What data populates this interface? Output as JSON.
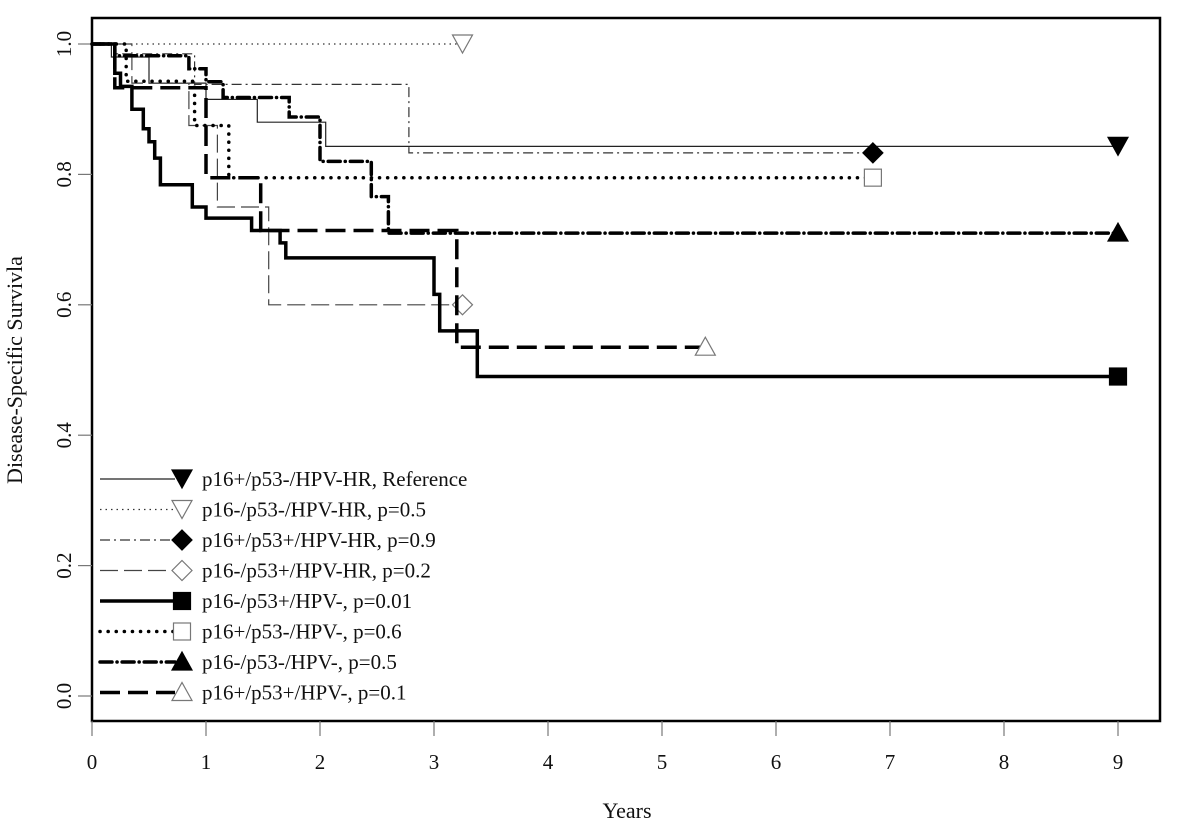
{
  "chart_data": {
    "type": "line",
    "subtype": "kaplan-meier step",
    "title": "",
    "xlabel": "Years",
    "ylabel": "Disease-Specific Survivla",
    "xlim": [
      0,
      9.3
    ],
    "ylim": [
      -0.08,
      1.05
    ],
    "xticks": [
      0,
      1,
      2,
      3,
      4,
      5,
      6,
      7,
      8,
      9
    ],
    "yticks": [
      0.0,
      0.2,
      0.4,
      0.6,
      0.8,
      1.0
    ],
    "ytick_labels": [
      "0.0",
      "0.2",
      "0.4",
      "0.6",
      "0.8",
      "1.0"
    ],
    "legend_position": "bottom-left",
    "grid": false,
    "series": [
      {
        "name": "p16+/p53-/HPV-HR, Reference",
        "line": "solid-thin",
        "marker": "triangle-down-filled",
        "points": [
          [
            0,
            1.0
          ],
          [
            0.17,
            1.0
          ],
          [
            0.17,
            0.98
          ],
          [
            0.5,
            0.98
          ],
          [
            0.5,
            0.94
          ],
          [
            1.0,
            0.94
          ],
          [
            1.0,
            0.915
          ],
          [
            1.45,
            0.915
          ],
          [
            1.45,
            0.88
          ],
          [
            2.05,
            0.88
          ],
          [
            2.05,
            0.843
          ],
          [
            9.0,
            0.843
          ]
        ]
      },
      {
        "name": "p16-/p53-/HPV-HR, p=0.5",
        "line": "dotted-thin",
        "marker": "triangle-down-open",
        "points": [
          [
            0,
            1.0
          ],
          [
            3.25,
            1.0
          ]
        ]
      },
      {
        "name": "p16+/p53+/HPV-HR, p=0.9",
        "line": "dashdot-thin",
        "marker": "diamond-filled",
        "points": [
          [
            0,
            1.0
          ],
          [
            0.2,
            1.0
          ],
          [
            0.2,
            0.985
          ],
          [
            0.9,
            0.985
          ],
          [
            0.9,
            0.938
          ],
          [
            2.78,
            0.938
          ],
          [
            2.78,
            0.833
          ],
          [
            6.85,
            0.833
          ]
        ]
      },
      {
        "name": "p16-/p53+/HPV-HR, p=0.2",
        "line": "longdash-thin",
        "marker": "diamond-open",
        "points": [
          [
            0,
            1.0
          ],
          [
            0.35,
            1.0
          ],
          [
            0.35,
            0.94
          ],
          [
            0.85,
            0.94
          ],
          [
            0.85,
            0.875
          ],
          [
            1.1,
            0.875
          ],
          [
            1.1,
            0.75
          ],
          [
            1.55,
            0.75
          ],
          [
            1.55,
            0.6
          ],
          [
            3.25,
            0.6
          ]
        ]
      },
      {
        "name": "p16-/p53+/HPV-, p=0.01",
        "line": "solid-thick",
        "marker": "square-filled",
        "points": [
          [
            0,
            1.0
          ],
          [
            0.2,
            1.0
          ],
          [
            0.2,
            0.955
          ],
          [
            0.25,
            0.955
          ],
          [
            0.25,
            0.935
          ],
          [
            0.35,
            0.935
          ],
          [
            0.35,
            0.9
          ],
          [
            0.45,
            0.9
          ],
          [
            0.45,
            0.87
          ],
          [
            0.5,
            0.87
          ],
          [
            0.5,
            0.85
          ],
          [
            0.55,
            0.85
          ],
          [
            0.55,
            0.825
          ],
          [
            0.6,
            0.825
          ],
          [
            0.6,
            0.784
          ],
          [
            0.88,
            0.784
          ],
          [
            0.88,
            0.75
          ],
          [
            1.0,
            0.75
          ],
          [
            1.0,
            0.733
          ],
          [
            1.4,
            0.733
          ],
          [
            1.4,
            0.714
          ],
          [
            1.65,
            0.714
          ],
          [
            1.65,
            0.695
          ],
          [
            1.7,
            0.695
          ],
          [
            1.7,
            0.672
          ],
          [
            3.0,
            0.672
          ],
          [
            3.0,
            0.616
          ],
          [
            3.05,
            0.616
          ],
          [
            3.05,
            0.56
          ],
          [
            3.38,
            0.56
          ],
          [
            3.38,
            0.49
          ],
          [
            9.0,
            0.49
          ]
        ]
      },
      {
        "name": "p16+/p53-/HPV-, p=0.6",
        "line": "dotted-thick",
        "marker": "square-open",
        "points": [
          [
            0,
            1.0
          ],
          [
            0.3,
            1.0
          ],
          [
            0.3,
            0.943
          ],
          [
            0.9,
            0.943
          ],
          [
            0.9,
            0.875
          ],
          [
            1.2,
            0.875
          ],
          [
            1.2,
            0.795
          ],
          [
            6.85,
            0.795
          ]
        ]
      },
      {
        "name": "p16-/p53-/HPV-, p=0.5",
        "line": "dashdot-thick",
        "marker": "triangle-up-filled",
        "points": [
          [
            0,
            1.0
          ],
          [
            0.2,
            1.0
          ],
          [
            0.2,
            0.982
          ],
          [
            0.85,
            0.982
          ],
          [
            0.85,
            0.962
          ],
          [
            1.0,
            0.962
          ],
          [
            1.0,
            0.942
          ],
          [
            1.15,
            0.942
          ],
          [
            1.15,
            0.918
          ],
          [
            1.73,
            0.918
          ],
          [
            1.73,
            0.888
          ],
          [
            2.0,
            0.888
          ],
          [
            2.0,
            0.82
          ],
          [
            2.45,
            0.82
          ],
          [
            2.45,
            0.766
          ],
          [
            2.6,
            0.766
          ],
          [
            2.6,
            0.71
          ],
          [
            9.0,
            0.71
          ]
        ]
      },
      {
        "name": "p16+/p53+/HPV-, p=0.1",
        "line": "dashed-thick",
        "marker": "triangle-up-open",
        "points": [
          [
            0,
            1.0
          ],
          [
            0.2,
            1.0
          ],
          [
            0.2,
            0.933
          ],
          [
            1.0,
            0.933
          ],
          [
            1.0,
            0.795
          ],
          [
            1.48,
            0.795
          ],
          [
            1.48,
            0.714
          ],
          [
            3.2,
            0.714
          ],
          [
            3.2,
            0.535
          ],
          [
            5.38,
            0.535
          ]
        ]
      }
    ]
  }
}
